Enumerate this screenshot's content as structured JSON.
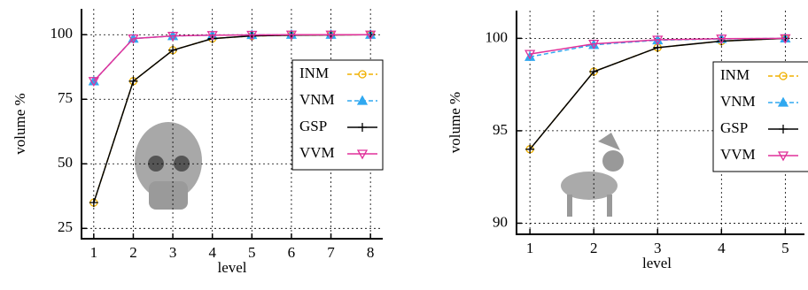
{
  "chart_data": [
    {
      "type": "line",
      "xlabel": "level",
      "ylabel": "volume %",
      "x": [
        1,
        2,
        3,
        4,
        5,
        6,
        7,
        8
      ],
      "xlim": [
        0.69,
        8.31
      ],
      "xticks": [
        1,
        2,
        3,
        4,
        5,
        6,
        7,
        8
      ],
      "ylim": [
        21,
        110
      ],
      "yticks": [
        25,
        50,
        75,
        100
      ],
      "grid": true,
      "legend": "upper right",
      "series": [
        {
          "name": "INM",
          "color": "#f0b000",
          "marker": "circle",
          "dash": true,
          "values": [
            35,
            82,
            94,
            98.5,
            99.5,
            99.8,
            99.9,
            100
          ]
        },
        {
          "name": "VNM",
          "color": "#30a8f0",
          "marker": "triangle",
          "dash": true,
          "values": [
            82,
            98.5,
            99.5,
            99.8,
            99.9,
            100,
            100,
            100
          ]
        },
        {
          "name": "GSP",
          "color": "#000000",
          "marker": "plus",
          "dash": false,
          "values": [
            35,
            82,
            94,
            98.5,
            99.5,
            99.8,
            99.9,
            100
          ]
        },
        {
          "name": "VVM",
          "color": "#e0309a",
          "marker": "down-triangle",
          "dash": false,
          "values": [
            82,
            98.5,
            99.5,
            99.8,
            99.9,
            100,
            100,
            100
          ]
        }
      ]
    },
    {
      "type": "line",
      "xlabel": "level",
      "ylabel": "volume %",
      "x": [
        1,
        2,
        3,
        4,
        5
      ],
      "xlim": [
        0.79,
        5.3
      ],
      "xticks": [
        1,
        2,
        3,
        4,
        5
      ],
      "ylim": [
        89.4,
        101.5
      ],
      "yticks": [
        90,
        95,
        100
      ],
      "grid": true,
      "legend": "upper right",
      "series": [
        {
          "name": "INM",
          "color": "#f0b000",
          "marker": "circle",
          "dash": true,
          "values": [
            94,
            98.2,
            99.5,
            99.85,
            100
          ]
        },
        {
          "name": "VNM",
          "color": "#30a8f0",
          "marker": "triangle",
          "dash": true,
          "values": [
            99.0,
            99.65,
            99.9,
            99.97,
            100
          ]
        },
        {
          "name": "GSP",
          "color": "#000000",
          "marker": "plus",
          "dash": false,
          "values": [
            94,
            98.2,
            99.5,
            99.85,
            100
          ]
        },
        {
          "name": "VVM",
          "color": "#e0309a",
          "marker": "down-triangle",
          "dash": false,
          "values": [
            99.15,
            99.7,
            99.92,
            99.98,
            100
          ]
        }
      ]
    }
  ]
}
